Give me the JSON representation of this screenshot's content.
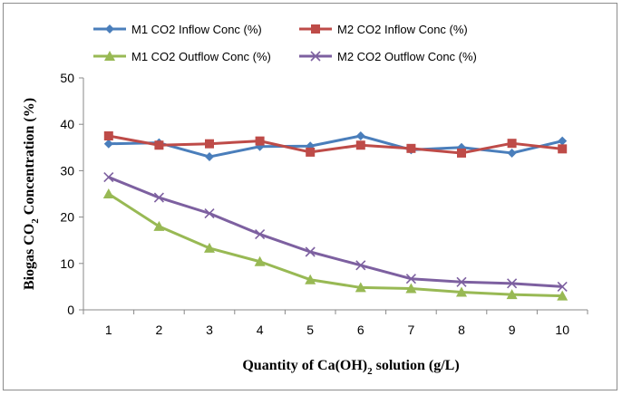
{
  "chart_data": {
    "type": "line",
    "title": "",
    "xlabel": "Quantity of Ca(OH)2 solution (g/L)",
    "ylabel": "Biogas CO2 Concentration (%)",
    "x": [
      1,
      2,
      3,
      4,
      5,
      6,
      7,
      8,
      9,
      10
    ],
    "ylim": [
      0,
      50
    ],
    "yticks": [
      0,
      10,
      20,
      30,
      40,
      50
    ],
    "grid": false,
    "legend_position": "top",
    "series": [
      {
        "name": "M1 CO2 Inflow Conc (%)",
        "color": "#4a7ebb",
        "marker": "diamond",
        "values": [
          35.8,
          36.0,
          33.0,
          35.2,
          35.3,
          37.5,
          34.5,
          35.0,
          33.8,
          36.4
        ]
      },
      {
        "name": "M2 CO2 Inflow Conc (%)",
        "color": "#be4b48",
        "marker": "square",
        "values": [
          37.5,
          35.5,
          35.8,
          36.4,
          34.0,
          35.5,
          34.8,
          33.8,
          35.9,
          34.7
        ]
      },
      {
        "name": "M1 CO2 Outflow Conc (%)",
        "color": "#98b954",
        "marker": "triangle",
        "values": [
          25.0,
          18.0,
          13.3,
          10.4,
          6.5,
          4.8,
          4.6,
          3.8,
          3.3,
          3.0
        ]
      },
      {
        "name": "M2 CO2 Outflow Conc (%)",
        "color": "#7d60a0",
        "marker": "x",
        "values": [
          28.6,
          24.2,
          20.8,
          16.3,
          12.5,
          9.6,
          6.7,
          6.0,
          5.7,
          5.0
        ]
      }
    ]
  },
  "axis_labels": {
    "x_prefix": "Quantity of Ca(OH)",
    "x_sub": "2",
    "x_suffix": " solution (g/L)",
    "y_prefix": "Biogas CO",
    "y_sub": "2",
    "y_suffix": " Concentration (%)"
  }
}
